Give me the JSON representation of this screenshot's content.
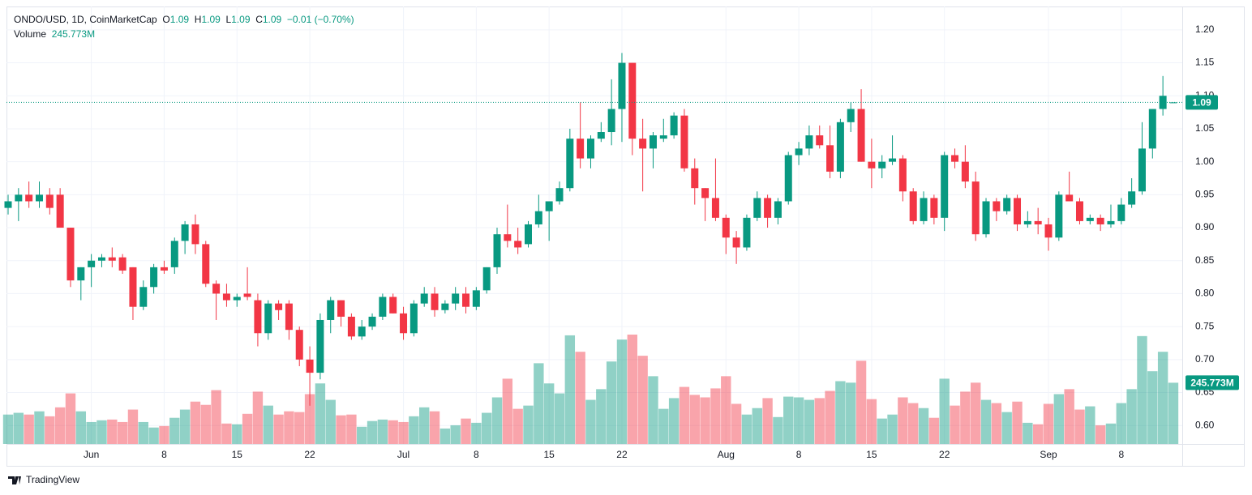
{
  "chart_data": {
    "type": "candlestick",
    "header": {
      "symbol": "ONDO/USD, 1D, CoinMarketCap",
      "o": "O",
      "h": "H",
      "l": "L",
      "c": "C",
      "change": "−0.01 (−0.70%)",
      "volume_title": "Volume",
      "volume_label": "245.773M"
    },
    "brand": "TradingView",
    "up_color": "#089981",
    "down_color": "#f23645",
    "grid": true,
    "categories": [
      "May 24",
      "May 25",
      "May 26",
      "May 27",
      "May 28",
      "May 29",
      "May 30",
      "May 31",
      "Jun 1",
      "Jun 2",
      "Jun 3",
      "Jun 4",
      "Jun 5",
      "Jun 6",
      "Jun 7",
      "Jun 8",
      "Jun 9",
      "Jun 10",
      "Jun 11",
      "Jun 12",
      "Jun 13",
      "Jun 14",
      "Jun 15",
      "Jun 16",
      "Jun 17",
      "Jun 18",
      "Jun 19",
      "Jun 20",
      "Jun 21",
      "Jun 22",
      "Jun 23",
      "Jun 24",
      "Jun 25",
      "Jun 26",
      "Jun 27",
      "Jun 28",
      "Jun 29",
      "Jun 30",
      "Jul 1",
      "Jul 2",
      "Jul 3",
      "Jul 4",
      "Jul 5",
      "Jul 6",
      "Jul 7",
      "Jul 8",
      "Jul 9",
      "Jul 10",
      "Jul 11",
      "Jul 12",
      "Jul 13",
      "Jul 14",
      "Jul 15",
      "Jul 16",
      "Jul 17",
      "Jul 18",
      "Jul 19",
      "Jul 20",
      "Jul 21",
      "Jul 22",
      "Jul 23",
      "Jul 24",
      "Jul 25",
      "Jul 26",
      "Jul 27",
      "Jul 28",
      "Jul 29",
      "Jul 30",
      "Jul 31",
      "Aug 1",
      "Aug 2",
      "Aug 3",
      "Aug 4",
      "Aug 5",
      "Aug 6",
      "Aug 7",
      "Aug 8",
      "Aug 9",
      "Aug 10",
      "Aug 11",
      "Aug 12",
      "Aug 13",
      "Aug 14",
      "Aug 15",
      "Aug 16",
      "Aug 17",
      "Aug 18",
      "Aug 19",
      "Aug 20",
      "Aug 21",
      "Aug 22",
      "Aug 23",
      "Aug 24",
      "Aug 25",
      "Aug 26",
      "Aug 27",
      "Aug 28",
      "Aug 29",
      "Aug 30",
      "Aug 31",
      "Sep 1",
      "Sep 2",
      "Sep 3",
      "Sep 4",
      "Sep 5",
      "Sep 6",
      "Sep 7",
      "Sep 8",
      "Sep 9",
      "Sep 10",
      "Sep 11",
      "Sep 12",
      "Sep 13"
    ],
    "open": [
      0.93,
      0.94,
      0.95,
      0.94,
      0.95,
      0.95,
      0.9,
      0.82,
      0.84,
      0.85,
      0.855,
      0.855,
      0.84,
      0.78,
      0.81,
      0.84,
      0.84,
      0.88,
      0.905,
      0.875,
      0.815,
      0.8,
      0.79,
      0.8,
      0.79,
      0.74,
      0.785,
      0.785,
      0.745,
      0.7,
      0.68,
      0.76,
      0.79,
      0.765,
      0.735,
      0.75,
      0.765,
      0.795,
      0.77,
      0.74,
      0.785,
      0.8,
      0.775,
      0.785,
      0.8,
      0.78,
      0.805,
      0.84,
      0.89,
      0.88,
      0.875,
      0.905,
      0.925,
      0.94,
      0.96,
      1.035,
      1.005,
      1.035,
      1.045,
      1.08,
      1.15,
      1.035,
      1.02,
      1.035,
      1.04,
      1.07,
      0.99,
      0.96,
      0.945,
      0.915,
      0.885,
      0.87,
      0.915,
      0.945,
      0.915,
      0.94,
      1.01,
      1.02,
      1.04,
      1.025,
      0.985,
      1.06,
      1.08,
      1.0,
      0.99,
      1.0,
      1.005,
      0.955,
      0.91,
      0.945,
      0.915,
      1.01,
      1.0,
      0.97,
      0.89,
      0.94,
      0.925,
      0.945,
      0.905,
      0.91,
      0.905,
      0.885,
      0.95,
      0.94,
      0.91,
      0.915,
      0.905,
      0.91,
      0.935,
      0.955,
      1.02,
      1.08,
      1.09
    ],
    "high": [
      0.95,
      0.96,
      0.97,
      0.97,
      0.96,
      0.96,
      0.9,
      0.84,
      0.86,
      0.86,
      0.87,
      0.86,
      0.84,
      0.82,
      0.845,
      0.85,
      0.885,
      0.91,
      0.92,
      0.88,
      0.82,
      0.815,
      0.8,
      0.84,
      0.8,
      0.79,
      0.79,
      0.79,
      0.75,
      0.72,
      0.77,
      0.795,
      0.79,
      0.77,
      0.76,
      0.77,
      0.8,
      0.8,
      0.78,
      0.79,
      0.81,
      0.81,
      0.79,
      0.81,
      0.81,
      0.81,
      0.84,
      0.9,
      0.935,
      0.9,
      0.91,
      0.95,
      0.94,
      0.97,
      1.05,
      1.09,
      1.04,
      1.06,
      1.125,
      1.165,
      1.15,
      1.065,
      1.045,
      1.065,
      1.075,
      1.08,
      1.005,
      0.96,
      1.005,
      0.92,
      0.895,
      0.92,
      0.955,
      0.95,
      0.945,
      1.015,
      1.03,
      1.055,
      1.055,
      1.055,
      1.065,
      1.09,
      1.11,
      1.035,
      1.01,
      1.04,
      1.01,
      0.96,
      0.955,
      0.95,
      1.015,
      1.02,
      1.025,
      0.985,
      0.945,
      0.945,
      0.95,
      0.95,
      0.925,
      0.93,
      0.915,
      0.955,
      0.985,
      0.945,
      0.92,
      0.92,
      0.935,
      0.945,
      0.975,
      1.06,
      1.08,
      1.13,
      1.09
    ],
    "low": [
      0.92,
      0.91,
      0.93,
      0.93,
      0.92,
      0.9,
      0.81,
      0.79,
      0.81,
      0.84,
      0.84,
      0.83,
      0.76,
      0.775,
      0.8,
      0.83,
      0.83,
      0.86,
      0.86,
      0.81,
      0.76,
      0.78,
      0.78,
      0.79,
      0.72,
      0.73,
      0.76,
      0.73,
      0.69,
      0.63,
      0.67,
      0.74,
      0.75,
      0.73,
      0.73,
      0.745,
      0.76,
      0.77,
      0.73,
      0.735,
      0.78,
      0.765,
      0.77,
      0.775,
      0.77,
      0.775,
      0.8,
      0.83,
      0.87,
      0.86,
      0.87,
      0.9,
      0.88,
      0.935,
      0.955,
      0.99,
      0.99,
      1.03,
      1.025,
      1.03,
      1.01,
      0.955,
      0.99,
      1.03,
      1.035,
      0.985,
      0.935,
      0.91,
      0.91,
      0.86,
      0.845,
      0.865,
      0.91,
      0.9,
      0.905,
      0.935,
      0.995,
      1.01,
      1.02,
      0.975,
      0.975,
      1.045,
      1.0,
      0.96,
      0.975,
      0.995,
      0.94,
      0.905,
      0.905,
      0.905,
      0.895,
      0.99,
      0.96,
      0.88,
      0.885,
      0.91,
      0.92,
      0.895,
      0.9,
      0.89,
      0.865,
      0.88,
      0.94,
      0.905,
      0.905,
      0.895,
      0.9,
      0.905,
      0.93,
      0.95,
      1.005,
      1.07,
      1.09
    ],
    "close": [
      0.94,
      0.95,
      0.94,
      0.95,
      0.93,
      0.9,
      0.82,
      0.84,
      0.85,
      0.855,
      0.85,
      0.835,
      0.78,
      0.81,
      0.84,
      0.835,
      0.88,
      0.905,
      0.875,
      0.815,
      0.8,
      0.79,
      0.795,
      0.795,
      0.74,
      0.785,
      0.775,
      0.745,
      0.7,
      0.68,
      0.76,
      0.79,
      0.765,
      0.735,
      0.75,
      0.765,
      0.795,
      0.77,
      0.74,
      0.785,
      0.8,
      0.775,
      0.785,
      0.8,
      0.78,
      0.805,
      0.84,
      0.89,
      0.88,
      0.87,
      0.905,
      0.925,
      0.94,
      0.96,
      1.035,
      1.005,
      1.035,
      1.045,
      1.08,
      1.15,
      1.035,
      1.02,
      1.04,
      1.04,
      1.07,
      0.99,
      0.96,
      0.945,
      0.915,
      0.885,
      0.87,
      0.915,
      0.945,
      0.915,
      0.94,
      1.01,
      1.02,
      1.04,
      1.025,
      0.985,
      1.06,
      1.08,
      1.0,
      0.99,
      1.0,
      1.005,
      0.955,
      0.91,
      0.945,
      0.915,
      1.01,
      1.0,
      0.97,
      0.89,
      0.94,
      0.925,
      0.945,
      0.905,
      0.91,
      0.905,
      0.885,
      0.95,
      0.94,
      0.91,
      0.915,
      0.905,
      0.91,
      0.935,
      0.955,
      1.02,
      1.08,
      1.1,
      1.09
    ],
    "volume": [
      118,
      125,
      118,
      131,
      111,
      147,
      203,
      131,
      88,
      95,
      98,
      88,
      138,
      88,
      66,
      72,
      105,
      138,
      170,
      157,
      216,
      82,
      79,
      121,
      210,
      154,
      118,
      131,
      128,
      200,
      243,
      177,
      115,
      118,
      69,
      92,
      98,
      95,
      88,
      111,
      147,
      131,
      62,
      75,
      102,
      85,
      125,
      187,
      262,
      141,
      154,
      324,
      243,
      203,
      436,
      370,
      177,
      220,
      331,
      419,
      439,
      354,
      272,
      141,
      184,
      229,
      197,
      187,
      223,
      272,
      161,
      118,
      144,
      184,
      108,
      190,
      187,
      177,
      184,
      213,
      252,
      246,
      334,
      180,
      102,
      118,
      187,
      164,
      144,
      105,
      262,
      154,
      210,
      246,
      177,
      164,
      128,
      170,
      85,
      79,
      161,
      200,
      220,
      138,
      151,
      75,
      82,
      164,
      220,
      433,
      292,
      370,
      245.773
    ],
    "ylim": [
      0.572,
      1.233
    ],
    "yticks": [
      {
        "value": 0.6,
        "label": "0.60"
      },
      0.65,
      {
        "value": 0.7,
        "label": "0.70"
      },
      0.75,
      {
        "value": 0.8,
        "label": "0.80"
      },
      0.85,
      {
        "value": 0.9,
        "label": "0.90"
      },
      0.95,
      {
        "value": 1,
        "label": "1.00"
      },
      1.05,
      {
        "value": 1.1,
        "label": "1.10"
      },
      1.15,
      {
        "value": 1.2,
        "label": "1.20"
      }
    ],
    "xticks": [
      {
        "value": "Jun 1",
        "label": "Jun"
      },
      {
        "value": "Jun 8",
        "label": "8"
      },
      {
        "value": "Jun 15",
        "label": "15"
      },
      {
        "value": "Jun 22",
        "label": "22"
      },
      {
        "value": "Jul 1",
        "label": "Jul"
      },
      {
        "value": "Jul 8",
        "label": "8"
      },
      {
        "value": "Jul 15",
        "label": "15"
      },
      {
        "value": "Jul 22",
        "label": "22"
      },
      {
        "value": "Aug 1",
        "label": "Aug"
      },
      {
        "value": "Aug 8",
        "label": "8"
      },
      {
        "value": "Aug 15",
        "label": "15"
      },
      {
        "value": "Aug 22",
        "label": "22"
      },
      {
        "value": "Sep 1",
        "label": "Sep"
      },
      {
        "value": "Sep 8",
        "label": "8"
      }
    ]
  }
}
